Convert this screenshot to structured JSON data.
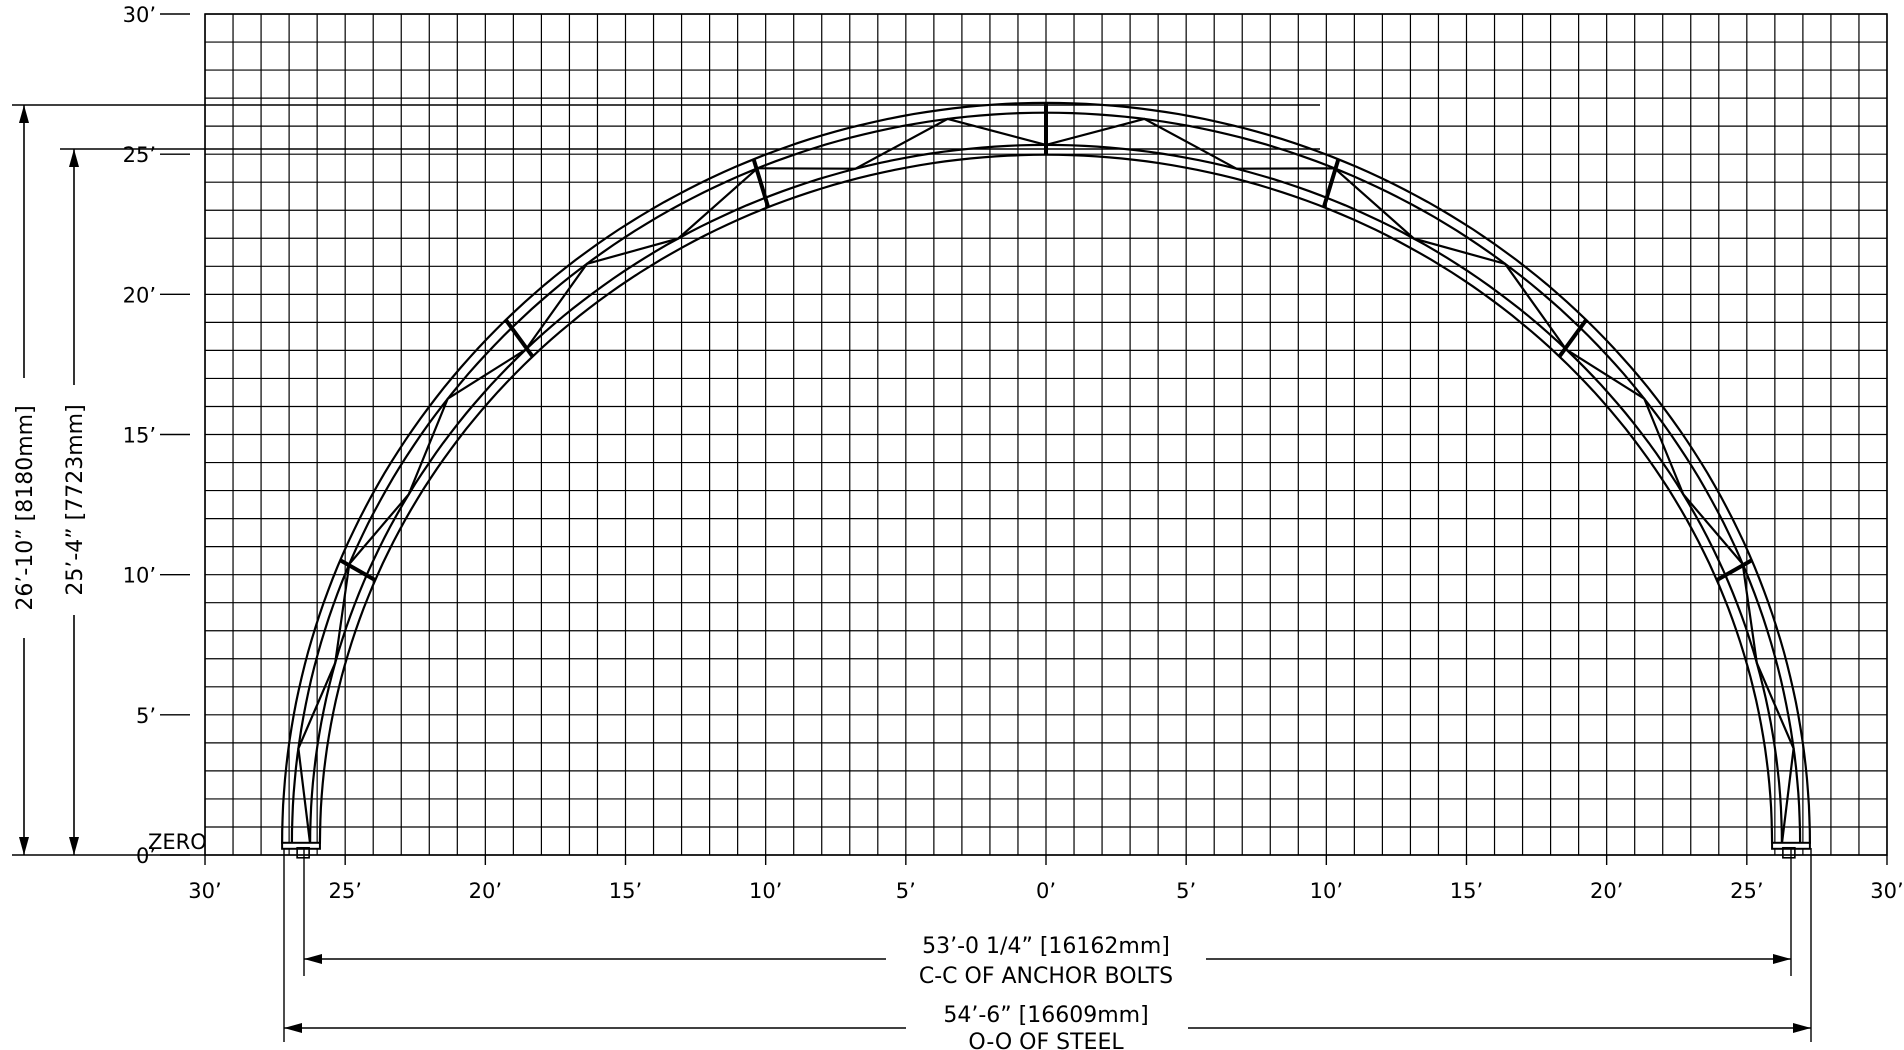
{
  "y_axis": {
    "ticks": [
      {
        "value": 30,
        "label": "30’"
      },
      {
        "value": 25,
        "label": "25’"
      },
      {
        "value": 20,
        "label": "20’"
      },
      {
        "value": 15,
        "label": "15’"
      },
      {
        "value": 10,
        "label": "10’"
      },
      {
        "value": 5,
        "label": "5’"
      },
      {
        "value": 0,
        "label": "0’"
      }
    ],
    "zero_label": "ZERO"
  },
  "x_axis": {
    "ticks": [
      {
        "value": -30,
        "label": "30’"
      },
      {
        "value": -25,
        "label": "25’"
      },
      {
        "value": -20,
        "label": "20’"
      },
      {
        "value": -15,
        "label": "15’"
      },
      {
        "value": -10,
        "label": "10’"
      },
      {
        "value": -5,
        "label": "5’"
      },
      {
        "value": 0,
        "label": "0’"
      },
      {
        "value": 5,
        "label": "5’"
      },
      {
        "value": 10,
        "label": "10’"
      },
      {
        "value": 15,
        "label": "15’"
      },
      {
        "value": 20,
        "label": "20’"
      },
      {
        "value": 25,
        "label": "25’"
      },
      {
        "value": 30,
        "label": "30’"
      }
    ]
  },
  "grid": {
    "x_range_ft": [
      -30,
      30
    ],
    "y_range_ft": [
      0,
      30
    ],
    "cell_ft": 1
  },
  "arch": {
    "outer_height_ft": 26.83,
    "inner_height_ft": 25.33,
    "outer_half_span_ft": 27.25,
    "inner_half_span_ft": 26.25,
    "panel_count": 24
  },
  "dimensions": {
    "overall_height": "26’-10” [8180mm]",
    "inner_height": "25’-4” [7723mm]",
    "anchor_span": "53’-0 1/4” [16162mm]",
    "anchor_span_note": "C-C OF ANCHOR BOLTS",
    "steel_span": "54’-6” [16609mm]",
    "steel_span_note": "O-O OF STEEL"
  }
}
